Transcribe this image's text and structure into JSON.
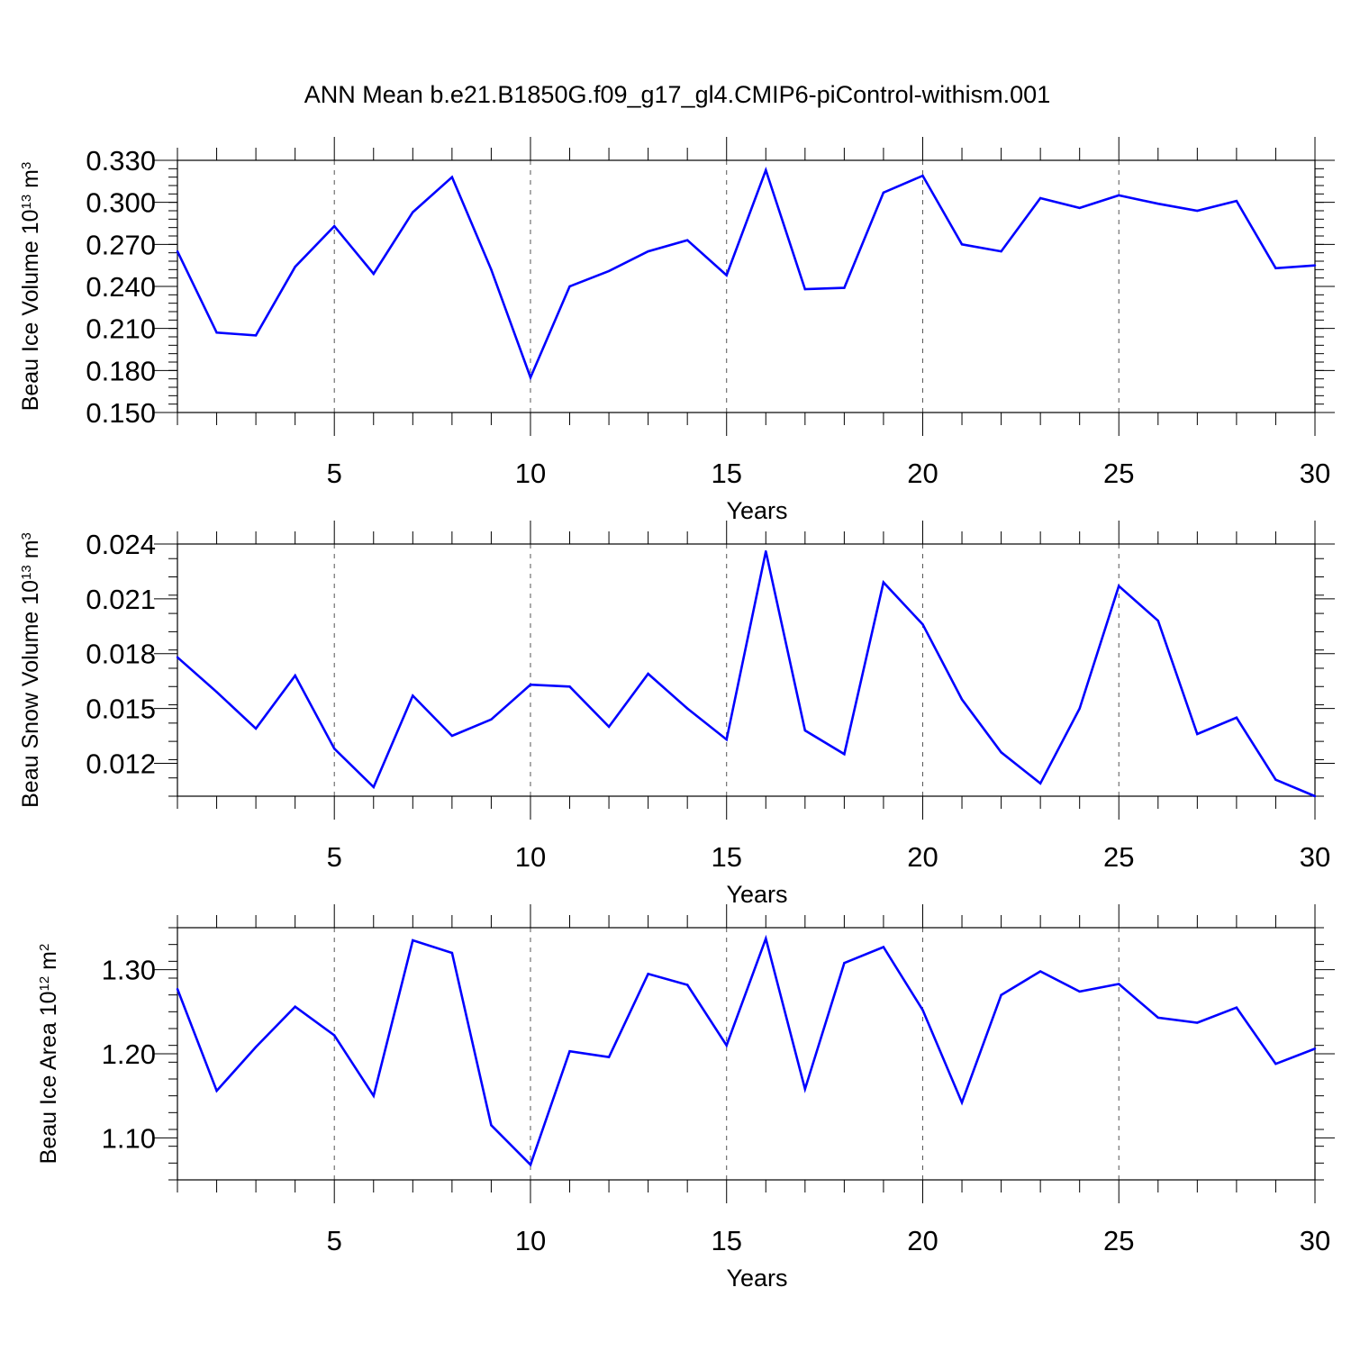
{
  "figure": {
    "title": "ANN Mean b.e21.B1850G.f09_g17_gl4.CMIP6-piControl-withism.001",
    "line_color": "#0000ff",
    "grid_color": "#555555"
  },
  "chart_data": [
    {
      "type": "line",
      "title": "",
      "xlabel": "Years",
      "ylabel": {
        "base": "Beau Ice Volume 10",
        "exp": "13",
        "unit": " m",
        "unit_exp": "3"
      },
      "xlim": [
        1,
        30
      ],
      "ylim": [
        0.15,
        0.33
      ],
      "xticks": [
        5,
        10,
        15,
        20,
        25,
        30
      ],
      "yticks": [
        0.15,
        0.18,
        0.21,
        0.24,
        0.27,
        0.3,
        0.33
      ],
      "ytick_labels": [
        "0.150",
        "0.180",
        "0.210",
        "0.240",
        "0.270",
        "0.300",
        "0.330"
      ],
      "y_minor_step": 0.006,
      "grid": "vertical dashed at major x ticks",
      "legend": "none",
      "x": [
        1,
        2,
        3,
        4,
        5,
        6,
        7,
        8,
        9,
        10,
        11,
        12,
        13,
        14,
        15,
        16,
        17,
        18,
        19,
        20,
        21,
        22,
        23,
        24,
        25,
        26,
        27,
        28,
        29,
        30
      ],
      "values": [
        0.265,
        0.207,
        0.205,
        0.254,
        0.283,
        0.249,
        0.293,
        0.318,
        0.252,
        0.175,
        0.24,
        0.251,
        0.265,
        0.273,
        0.248,
        0.323,
        0.238,
        0.239,
        0.307,
        0.319,
        0.27,
        0.265,
        0.303,
        0.296,
        0.305,
        0.299,
        0.294,
        0.301,
        0.253,
        0.255
      ]
    },
    {
      "type": "line",
      "title": "",
      "xlabel": "Years",
      "ylabel": {
        "base": "Beau Snow Volume 10",
        "exp": "13",
        "unit": " m",
        "unit_exp": "3"
      },
      "xlim": [
        1,
        30
      ],
      "ylim": [
        0.0102,
        0.024
      ],
      "xticks": [
        5,
        10,
        15,
        20,
        25,
        30
      ],
      "yticks": [
        0.012,
        0.015,
        0.018,
        0.021,
        0.024
      ],
      "ytick_labels": [
        "0.012",
        "0.015",
        "0.018",
        "0.021",
        "0.024"
      ],
      "y_minor_step": 0.001,
      "grid": "vertical dashed at major x ticks",
      "legend": "none",
      "x": [
        1,
        2,
        3,
        4,
        5,
        6,
        7,
        8,
        9,
        10,
        11,
        12,
        13,
        14,
        15,
        16,
        17,
        18,
        19,
        20,
        21,
        22,
        23,
        24,
        25,
        26,
        27,
        28,
        29,
        30
      ],
      "values": [
        0.0178,
        0.0159,
        0.0139,
        0.0168,
        0.0128,
        0.0107,
        0.0157,
        0.0135,
        0.0144,
        0.0163,
        0.0162,
        0.014,
        0.0169,
        0.015,
        0.0133,
        0.0236,
        0.0138,
        0.0125,
        0.0219,
        0.0196,
        0.0155,
        0.0126,
        0.0109,
        0.015,
        0.0217,
        0.0198,
        0.0136,
        0.0145,
        0.0111,
        0.0102
      ]
    },
    {
      "type": "line",
      "title": "",
      "xlabel": "Years",
      "ylabel": {
        "base": "Beau Ice Area 10",
        "exp": "12",
        "unit": " m",
        "unit_exp": "2"
      },
      "xlim": [
        1,
        30
      ],
      "ylim": [
        1.05,
        1.35
      ],
      "xticks": [
        5,
        10,
        15,
        20,
        25,
        30
      ],
      "yticks": [
        1.1,
        1.2,
        1.3
      ],
      "ytick_labels": [
        "1.10",
        "1.20",
        "1.30"
      ],
      "y_minor_step": 0.02,
      "grid": "vertical dashed at major x ticks",
      "legend": "none",
      "x": [
        1,
        2,
        3,
        4,
        5,
        6,
        7,
        8,
        9,
        10,
        11,
        12,
        13,
        14,
        15,
        16,
        17,
        18,
        19,
        20,
        21,
        22,
        23,
        24,
        25,
        26,
        27,
        28,
        29,
        30
      ],
      "values": [
        1.277,
        1.156,
        1.208,
        1.256,
        1.222,
        1.15,
        1.335,
        1.32,
        1.115,
        1.068,
        1.203,
        1.196,
        1.295,
        1.282,
        1.21,
        1.337,
        1.158,
        1.308,
        1.327,
        1.252,
        1.142,
        1.27,
        1.298,
        1.274,
        1.283,
        1.243,
        1.237,
        1.255,
        1.188,
        1.206
      ]
    }
  ]
}
